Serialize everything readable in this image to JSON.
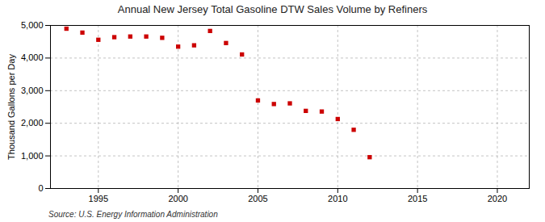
{
  "chart_data": {
    "type": "scatter",
    "title": "Annual New Jersey Total Gasoline DTW Sales Volume by Refiners",
    "ylabel": "Thousand Gallons per Day",
    "source": "Source: U.S. Energy Information Administration",
    "x": [
      1993,
      1994,
      1995,
      1996,
      1997,
      1998,
      1999,
      2000,
      2001,
      2002,
      2003,
      2004,
      2005,
      2006,
      2007,
      2008,
      2009,
      2010,
      2011,
      2012
    ],
    "values": [
      4900,
      4780,
      4560,
      4640,
      4660,
      4660,
      4620,
      4350,
      4390,
      4830,
      4460,
      4110,
      2700,
      2590,
      2610,
      2380,
      2360,
      2130,
      1800,
      960
    ],
    "color": "#cc0000",
    "marker": "square",
    "xlim": [
      1992,
      2022
    ],
    "xticks": [
      1995,
      2000,
      2005,
      2010,
      2015,
      2020
    ],
    "ylim": [
      0,
      5000
    ],
    "yticks": [
      0,
      {
        "value": 1000,
        "label": "1,000"
      },
      {
        "value": 2000,
        "label": "2,000"
      },
      {
        "value": 3000,
        "label": "3,000"
      },
      {
        "value": 4000,
        "label": "4,000"
      },
      {
        "value": 5000,
        "label": "5,000"
      }
    ],
    "grid": true
  }
}
